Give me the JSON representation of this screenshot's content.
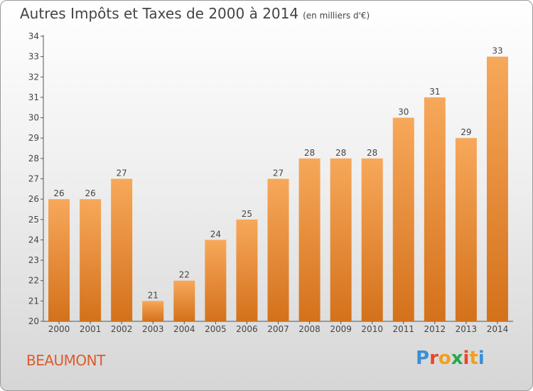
{
  "title": "Autres Impôts et Taxes de 2000 à 2014",
  "unit": "(en milliers d'€)",
  "place": "BEAUMONT",
  "brand": {
    "letters": [
      "P",
      "r",
      "o",
      "x",
      "i",
      "t",
      "i"
    ],
    "colors": [
      "#3a8fd8",
      "#e8472b",
      "#f0a020",
      "#2aa84a",
      "#e8472b",
      "#f0a020",
      "#3a8fd8"
    ]
  },
  "colors": {
    "bar_light": "#f7a85a",
    "bar_dark": "#d4711b",
    "place": "#e05a2b"
  },
  "chart_data": {
    "type": "bar",
    "categories": [
      "2000",
      "2001",
      "2002",
      "2003",
      "2004",
      "2005",
      "2006",
      "2007",
      "2008",
      "2009",
      "2010",
      "2011",
      "2012",
      "2013",
      "2014"
    ],
    "values": [
      26,
      26,
      27,
      21,
      22,
      24,
      25,
      27,
      28,
      28,
      28,
      30,
      31,
      29,
      33
    ],
    "title": "Autres Impôts et Taxes de 2000 à 2014",
    "xlabel": "",
    "ylabel": "",
    "ylim": [
      20,
      34
    ],
    "yticks": [
      20,
      21,
      22,
      23,
      24,
      25,
      26,
      27,
      28,
      29,
      30,
      31,
      32,
      33,
      34
    ],
    "grid": false,
    "data_labels": true
  }
}
